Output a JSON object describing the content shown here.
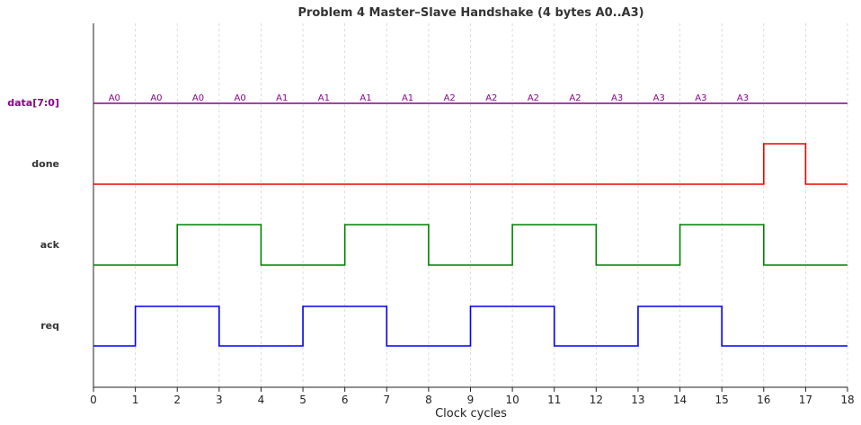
{
  "chart_data": {
    "type": "timing-diagram",
    "title": "Problem 4 Master–Slave Handshake (4 bytes A0..A3)",
    "xlabel": "Clock cycles",
    "xlim": [
      0,
      18
    ],
    "x_ticks": [
      "0",
      "1",
      "2",
      "3",
      "4",
      "5",
      "6",
      "7",
      "8",
      "9",
      "10",
      "11",
      "12",
      "13",
      "14",
      "15",
      "16",
      "17",
      "18"
    ],
    "grid": "vertical-dashed",
    "signals": [
      {
        "name": "req",
        "color": "#0000ee",
        "label_color": "#333333",
        "kind": "digital",
        "edges": [
          [
            0,
            0
          ],
          [
            1,
            1
          ],
          [
            3,
            0
          ],
          [
            5,
            1
          ],
          [
            7,
            0
          ],
          [
            9,
            1
          ],
          [
            11,
            0
          ],
          [
            13,
            1
          ],
          [
            15,
            0
          ],
          [
            18,
            0
          ]
        ]
      },
      {
        "name": "ack",
        "color": "#008000",
        "label_color": "#333333",
        "kind": "digital",
        "edges": [
          [
            0,
            0
          ],
          [
            2,
            1
          ],
          [
            4,
            0
          ],
          [
            6,
            1
          ],
          [
            8,
            0
          ],
          [
            10,
            1
          ],
          [
            12,
            0
          ],
          [
            14,
            1
          ],
          [
            16,
            0
          ],
          [
            18,
            0
          ]
        ]
      },
      {
        "name": "done",
        "color": "#ee0000",
        "label_color": "#333333",
        "kind": "digital",
        "edges": [
          [
            0,
            0
          ],
          [
            16,
            1
          ],
          [
            17,
            0
          ],
          [
            18,
            0
          ]
        ]
      },
      {
        "name": "data[7:0]",
        "color": "#8b008b",
        "label_color": "#8b008b",
        "kind": "bus",
        "values": [
          "A0",
          "A0",
          "A0",
          "A0",
          "A1",
          "A1",
          "A1",
          "A1",
          "A2",
          "A2",
          "A2",
          "A2",
          "A3",
          "A3",
          "A3",
          "A3"
        ]
      }
    ]
  }
}
